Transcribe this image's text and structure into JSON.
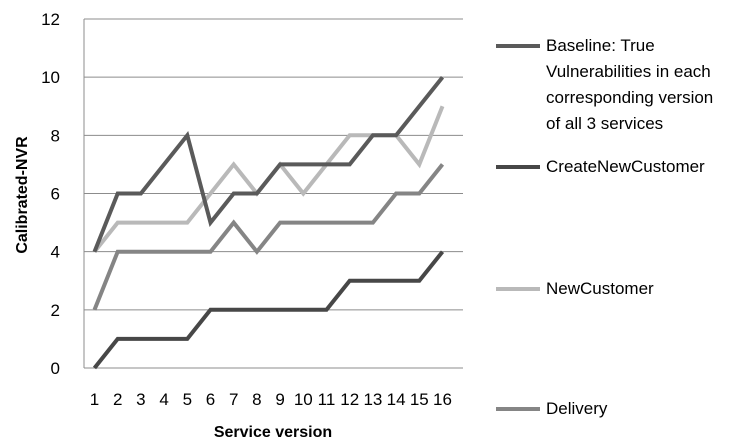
{
  "chart_data": {
    "type": "line",
    "title": "",
    "xlabel": "Service version",
    "ylabel": "Calibrated-NVR",
    "x": [
      1,
      2,
      3,
      4,
      5,
      6,
      7,
      8,
      9,
      10,
      11,
      12,
      13,
      14,
      15,
      16
    ],
    "x_tick_labels": [
      "1",
      "2",
      "3",
      "4",
      "5",
      "6",
      "7",
      "8",
      "9",
      "10",
      "11",
      "12",
      "13",
      "14",
      "15",
      "16"
    ],
    "ylim": [
      0,
      12
    ],
    "y_ticks": [
      0,
      2,
      4,
      6,
      8,
      10,
      12
    ],
    "grid": "horizontal",
    "legend_position": "right",
    "series": [
      {
        "name": "Baseline: True Vulnerabilities in each corresponding version of all 3 services",
        "legend_lines": [
          "Baseline: True",
          "Vulnerabilities in each",
          "corresponding version",
          "of all 3 services"
        ],
        "color": "#5a5a5a",
        "values": [
          4,
          6,
          6,
          7,
          8,
          5,
          6,
          6,
          7,
          7,
          7,
          7,
          8,
          8,
          9,
          10
        ]
      },
      {
        "name": "CreateNewCustomer",
        "legend_lines": [
          "CreateNewCustomer"
        ],
        "color": "#474747",
        "values": [
          0,
          1,
          1,
          1,
          1,
          2,
          2,
          2,
          2,
          2,
          2,
          3,
          3,
          3,
          3,
          4
        ]
      },
      {
        "name": "NewCustomer",
        "legend_lines": [
          "NewCustomer"
        ],
        "color": "#b9b9b9",
        "values": [
          4,
          5,
          5,
          5,
          5,
          6,
          7,
          6,
          7,
          6,
          7,
          8,
          8,
          8,
          7,
          9
        ]
      },
      {
        "name": "Delivery",
        "legend_lines": [
          "Delivery"
        ],
        "color": "#858585",
        "values": [
          2,
          4,
          4,
          4,
          4,
          4,
          5,
          4,
          5,
          5,
          5,
          5,
          5,
          6,
          6,
          7
        ]
      }
    ]
  }
}
